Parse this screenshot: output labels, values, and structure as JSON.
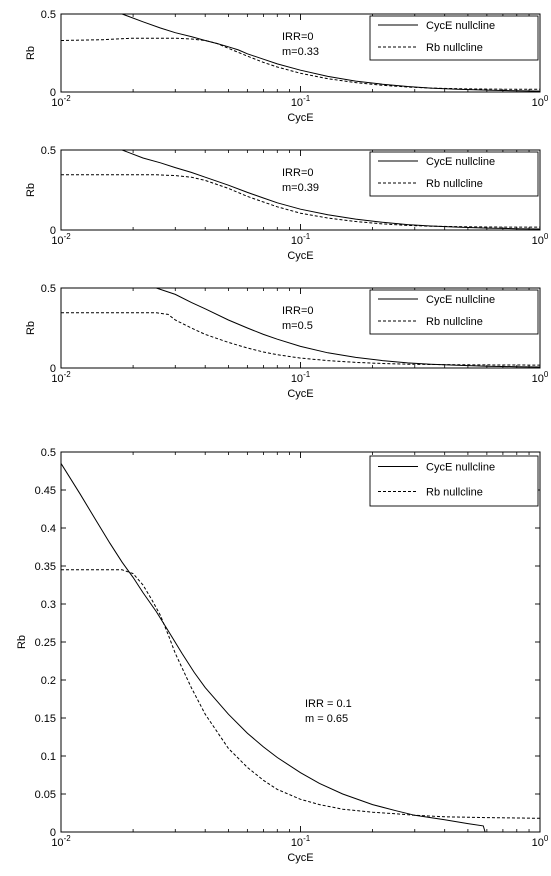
{
  "chart_data": [
    {
      "type": "line",
      "xscale": "log",
      "xlim": [
        0.01,
        1
      ],
      "ylim": [
        0,
        0.5
      ],
      "xlabel": "CycE",
      "ylabel": "Rb",
      "xticks": [
        "10-2",
        "10-1",
        "100"
      ],
      "yticks": [
        "0",
        "0.5"
      ],
      "annotation": [
        "IRR=0",
        "m=0.33"
      ],
      "legend": {
        "position": "top-right",
        "entries": [
          "CycE nullcline",
          "Rb nullcline"
        ]
      },
      "series": [
        {
          "name": "CycE nullcline",
          "style": "solid",
          "x": [
            0.018,
            0.022,
            0.026,
            0.03,
            0.035,
            0.04,
            0.045,
            0.05,
            0.055,
            0.06,
            0.07,
            0.08,
            0.1,
            0.13,
            0.17,
            0.22,
            0.28,
            0.35,
            0.45,
            0.6,
            0.8,
            1.0
          ],
          "y": [
            0.5,
            0.45,
            0.41,
            0.38,
            0.355,
            0.33,
            0.31,
            0.29,
            0.27,
            0.245,
            0.21,
            0.18,
            0.14,
            0.1,
            0.07,
            0.05,
            0.035,
            0.025,
            0.018,
            0.012,
            0.008,
            0.006
          ]
        },
        {
          "name": "Rb nullcline",
          "style": "dashed",
          "x": [
            0.01,
            0.015,
            0.02,
            0.025,
            0.03,
            0.035,
            0.04,
            0.045,
            0.05,
            0.06,
            0.07,
            0.08,
            0.1,
            0.13,
            0.17,
            0.22,
            0.28,
            0.35,
            0.5,
            0.7,
            1.0
          ],
          "y": [
            0.33,
            0.335,
            0.345,
            0.345,
            0.345,
            0.34,
            0.33,
            0.31,
            0.28,
            0.23,
            0.19,
            0.16,
            0.12,
            0.085,
            0.06,
            0.043,
            0.032,
            0.025,
            0.02,
            0.018,
            0.018
          ]
        }
      ]
    },
    {
      "type": "line",
      "xscale": "log",
      "xlim": [
        0.01,
        1
      ],
      "ylim": [
        0,
        0.5
      ],
      "xlabel": "CycE",
      "ylabel": "Rb",
      "xticks": [
        "10-2",
        "10-1",
        "100"
      ],
      "yticks": [
        "0",
        "0.5"
      ],
      "annotation": [
        "IRR=0",
        "m=0.39"
      ],
      "legend": {
        "position": "top-right",
        "entries": [
          "CycE nullcline",
          "Rb nullcline"
        ]
      },
      "series": [
        {
          "name": "CycE nullcline",
          "style": "solid",
          "x": [
            0.018,
            0.022,
            0.026,
            0.03,
            0.035,
            0.04,
            0.05,
            0.06,
            0.07,
            0.08,
            0.1,
            0.13,
            0.17,
            0.22,
            0.28,
            0.35,
            0.45,
            0.6,
            0.8,
            1.0
          ],
          "y": [
            0.5,
            0.45,
            0.42,
            0.39,
            0.36,
            0.33,
            0.28,
            0.235,
            0.2,
            0.17,
            0.13,
            0.095,
            0.068,
            0.048,
            0.034,
            0.025,
            0.018,
            0.012,
            0.008,
            0.006
          ]
        },
        {
          "name": "Rb nullcline",
          "style": "dashed",
          "x": [
            0.01,
            0.015,
            0.02,
            0.025,
            0.03,
            0.035,
            0.04,
            0.05,
            0.06,
            0.07,
            0.08,
            0.1,
            0.13,
            0.17,
            0.22,
            0.28,
            0.35,
            0.5,
            0.7,
            1.0
          ],
          "y": [
            0.345,
            0.345,
            0.345,
            0.345,
            0.34,
            0.33,
            0.31,
            0.26,
            0.21,
            0.175,
            0.145,
            0.105,
            0.075,
            0.053,
            0.038,
            0.029,
            0.024,
            0.02,
            0.018,
            0.018
          ]
        }
      ]
    },
    {
      "type": "line",
      "xscale": "log",
      "xlim": [
        0.01,
        1
      ],
      "ylim": [
        0,
        0.5
      ],
      "xlabel": "CycE",
      "ylabel": "Rb",
      "xticks": [
        "10-2",
        "10-1",
        "100"
      ],
      "yticks": [
        "0",
        "0.5"
      ],
      "annotation": [
        "IRR=0",
        "m=0.5"
      ],
      "legend": {
        "position": "top-right",
        "entries": [
          "CycE nullcline",
          "Rb nullcline"
        ]
      },
      "series": [
        {
          "name": "CycE nullcline",
          "style": "solid",
          "x": [
            0.025,
            0.03,
            0.035,
            0.04,
            0.05,
            0.06,
            0.07,
            0.08,
            0.1,
            0.13,
            0.17,
            0.22,
            0.28,
            0.35,
            0.45,
            0.6,
            0.8,
            1.0
          ],
          "y": [
            0.5,
            0.46,
            0.41,
            0.37,
            0.3,
            0.25,
            0.21,
            0.18,
            0.135,
            0.095,
            0.066,
            0.046,
            0.032,
            0.024,
            0.017,
            0.011,
            0.008,
            0.006
          ]
        },
        {
          "name": "Rb nullcline",
          "style": "dashed",
          "x": [
            0.01,
            0.015,
            0.02,
            0.025,
            0.028,
            0.03,
            0.035,
            0.04,
            0.05,
            0.06,
            0.07,
            0.08,
            0.1,
            0.13,
            0.17,
            0.22,
            0.28,
            0.35,
            0.5,
            0.7,
            1.0
          ],
          "y": [
            0.345,
            0.345,
            0.345,
            0.345,
            0.335,
            0.3,
            0.25,
            0.21,
            0.16,
            0.125,
            0.1,
            0.083,
            0.062,
            0.046,
            0.035,
            0.028,
            0.024,
            0.022,
            0.02,
            0.019,
            0.018
          ]
        }
      ]
    },
    {
      "type": "line",
      "xscale": "log",
      "xlim": [
        0.01,
        1
      ],
      "ylim": [
        0,
        0.5
      ],
      "xlabel": "CycE",
      "ylabel": "Rb",
      "xticks": [
        "10-2",
        "10-1",
        "100"
      ],
      "yticks": [
        "0",
        "0.05",
        "0.1",
        "0.15",
        "0.2",
        "0.25",
        "0.3",
        "0.35",
        "0.4",
        "0.45",
        "0.5"
      ],
      "annotation": [
        "IRR = 0.1",
        "m = 0.65"
      ],
      "legend": {
        "position": "top-right",
        "entries": [
          "CycE nullcline",
          "Rb nullcline"
        ]
      },
      "series": [
        {
          "name": "CycE nullcline",
          "style": "solid",
          "x": [
            0.01,
            0.012,
            0.014,
            0.016,
            0.018,
            0.02,
            0.022,
            0.025,
            0.028,
            0.032,
            0.036,
            0.04,
            0.05,
            0.06,
            0.07,
            0.08,
            0.1,
            0.12,
            0.15,
            0.2,
            0.25,
            0.3,
            0.4,
            0.5,
            0.58,
            0.59
          ],
          "y": [
            0.485,
            0.445,
            0.41,
            0.38,
            0.355,
            0.335,
            0.315,
            0.29,
            0.265,
            0.235,
            0.21,
            0.19,
            0.155,
            0.13,
            0.112,
            0.098,
            0.078,
            0.064,
            0.05,
            0.036,
            0.028,
            0.022,
            0.016,
            0.011,
            0.008,
            0.0
          ]
        },
        {
          "name": "Rb nullcline",
          "style": "dashed",
          "x": [
            0.01,
            0.014,
            0.018,
            0.02,
            0.022,
            0.024,
            0.026,
            0.028,
            0.03,
            0.035,
            0.04,
            0.05,
            0.06,
            0.07,
            0.08,
            0.1,
            0.12,
            0.15,
            0.2,
            0.25,
            0.3,
            0.4,
            0.6,
            1.0
          ],
          "y": [
            0.345,
            0.345,
            0.345,
            0.34,
            0.325,
            0.305,
            0.285,
            0.26,
            0.235,
            0.19,
            0.155,
            0.11,
            0.085,
            0.068,
            0.056,
            0.043,
            0.036,
            0.03,
            0.026,
            0.024,
            0.022,
            0.02,
            0.019,
            0.018
          ]
        }
      ]
    }
  ]
}
